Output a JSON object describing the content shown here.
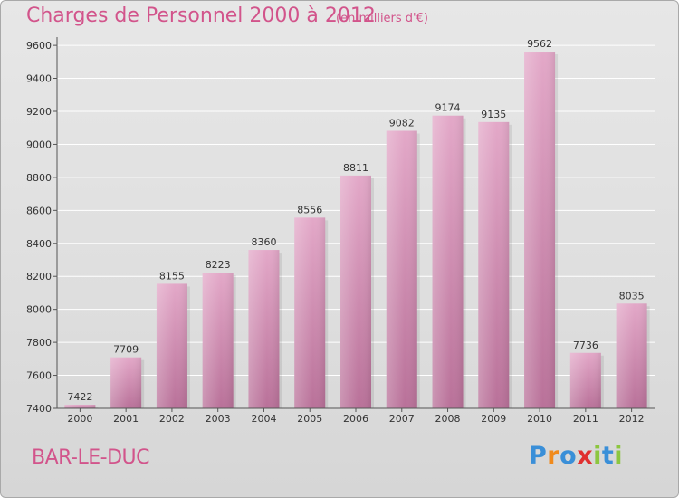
{
  "header": {
    "title": "Charges de Personnel 2000 à 2012",
    "subtitle": "(en milliers d'€)"
  },
  "footer": {
    "city": "BAR-LE-DUC",
    "logo": {
      "letters": [
        "P",
        "r",
        "o",
        "x",
        "i",
        "t",
        "i"
      ],
      "text": "Proxiti",
      "colors": [
        "#3a8fd8",
        "#f08a1c",
        "#3a8fd8",
        "#e03030",
        "#8cc63f",
        "#3a8fd8",
        "#8cc63f"
      ]
    }
  },
  "chart_data": {
    "type": "bar",
    "title": "Charges de Personnel 2000 à 2012",
    "subtitle": "(en milliers d'€)",
    "categories": [
      "2000",
      "2001",
      "2002",
      "2003",
      "2004",
      "2005",
      "2006",
      "2007",
      "2008",
      "2009",
      "2010",
      "2011",
      "2012"
    ],
    "values": [
      7422,
      7709,
      8155,
      8223,
      8360,
      8556,
      8811,
      9082,
      9174,
      9135,
      9562,
      7736,
      8035
    ],
    "ylim": [
      7400,
      9650
    ],
    "yticks": [
      7400,
      7600,
      7800,
      8000,
      8200,
      8400,
      8600,
      8800,
      9000,
      9200,
      9400,
      9600
    ],
    "grid": true,
    "bar_color": "#cc7fa6"
  }
}
